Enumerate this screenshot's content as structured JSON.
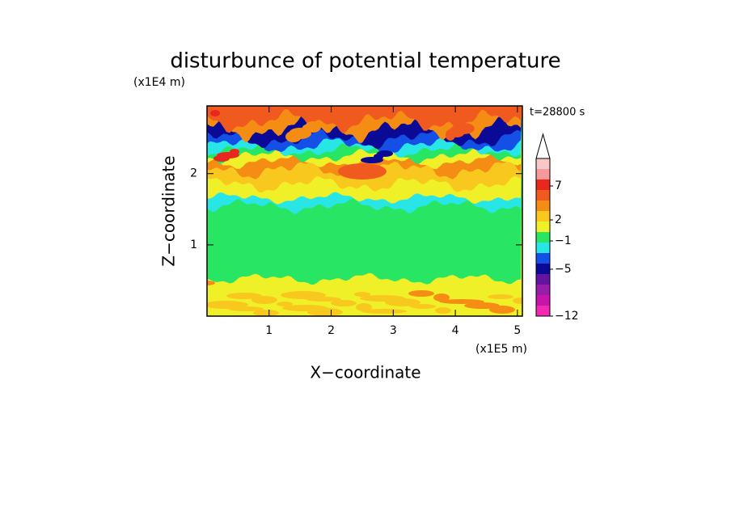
{
  "chart_data": {
    "type": "contour",
    "title": "disturbunce of potential temperature",
    "x_label": "X−coordinate",
    "y_label": "Z−coordinate",
    "x_unit": "(x1E5 m)",
    "y_unit": "(x1E4 m)",
    "annotation": "t=28800 s",
    "xlim": [
      0,
      5.08
    ],
    "xticks": [
      1,
      2,
      3,
      4,
      5
    ],
    "ylim": [
      0,
      2.95
    ],
    "yticks": [
      1,
      2
    ],
    "colorbar": {
      "colors": [
        "#f8c8c8",
        "#f49a9a",
        "#e8281e",
        "#f05a1e",
        "#f58c14",
        "#f8c81e",
        "#f0f028",
        "#28e664",
        "#28e6e6",
        "#1450e6",
        "#0a0a96",
        "#6414a0",
        "#961eaa",
        "#c814aa",
        "#f028b4"
      ],
      "ticks": [
        {
          "value": 7,
          "label": "7"
        },
        {
          "value": 2,
          "label": "2"
        },
        {
          "value": -1,
          "label": "−1"
        },
        {
          "value": -5,
          "label": "−5"
        },
        {
          "value": -12,
          "label": "−12"
        }
      ]
    }
  }
}
